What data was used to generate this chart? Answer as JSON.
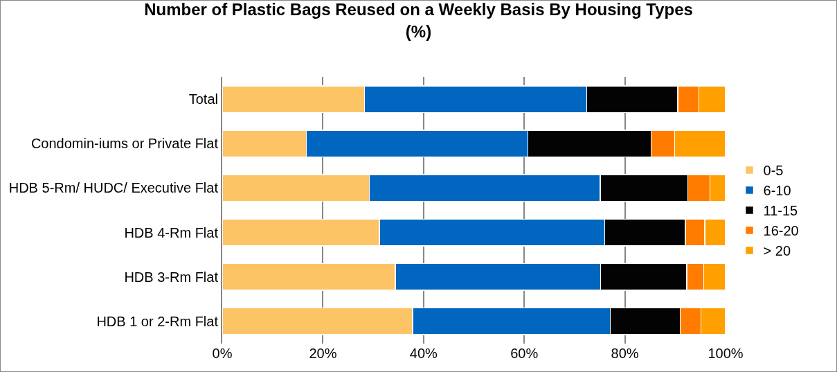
{
  "chart_data": {
    "type": "bar",
    "orientation": "horizontal",
    "stacked": true,
    "title": "Number of Plastic Bags Reused on a Weekly Basis By Housing Types\n(%)",
    "categories": [
      "Total",
      "Condomin-iums or Private Flat",
      "HDB 5-Rm/ HUDC/ Executive Flat",
      "HDB 4-Rm Flat",
      "HDB 3-Rm Flat",
      "HDB 1 or 2-Rm Flat"
    ],
    "series": [
      {
        "name": "0-5",
        "color": "#fdc466",
        "values": [
          28.3,
          16.7,
          29.2,
          31.2,
          34.4,
          37.8
        ]
      },
      {
        "name": "6-10",
        "color": "#0066bf",
        "values": [
          44.1,
          44.0,
          45.9,
          44.8,
          40.8,
          39.3
        ]
      },
      {
        "name": "11-15",
        "color": "#030303",
        "values": [
          18.1,
          24.5,
          17.4,
          16.0,
          17.1,
          13.9
        ]
      },
      {
        "name": "16-20",
        "color": "#ff7c00",
        "values": [
          4.2,
          4.7,
          4.4,
          3.9,
          3.4,
          4.1
        ]
      },
      {
        "name": "> 20",
        "color": "#ffa000",
        "values": [
          5.3,
          10.1,
          3.1,
          4.1,
          4.3,
          4.9
        ]
      }
    ],
    "xlim": [
      0,
      100
    ],
    "xticks": [
      {
        "value": 0,
        "label": "0%"
      },
      {
        "value": 20,
        "label": "20%"
      },
      {
        "value": 40,
        "label": "40%"
      },
      {
        "value": 60,
        "label": "60%"
      },
      {
        "value": 80,
        "label": "80%"
      },
      {
        "value": 100,
        "label": "100%"
      }
    ],
    "grid": "x",
    "legend": "right"
  }
}
